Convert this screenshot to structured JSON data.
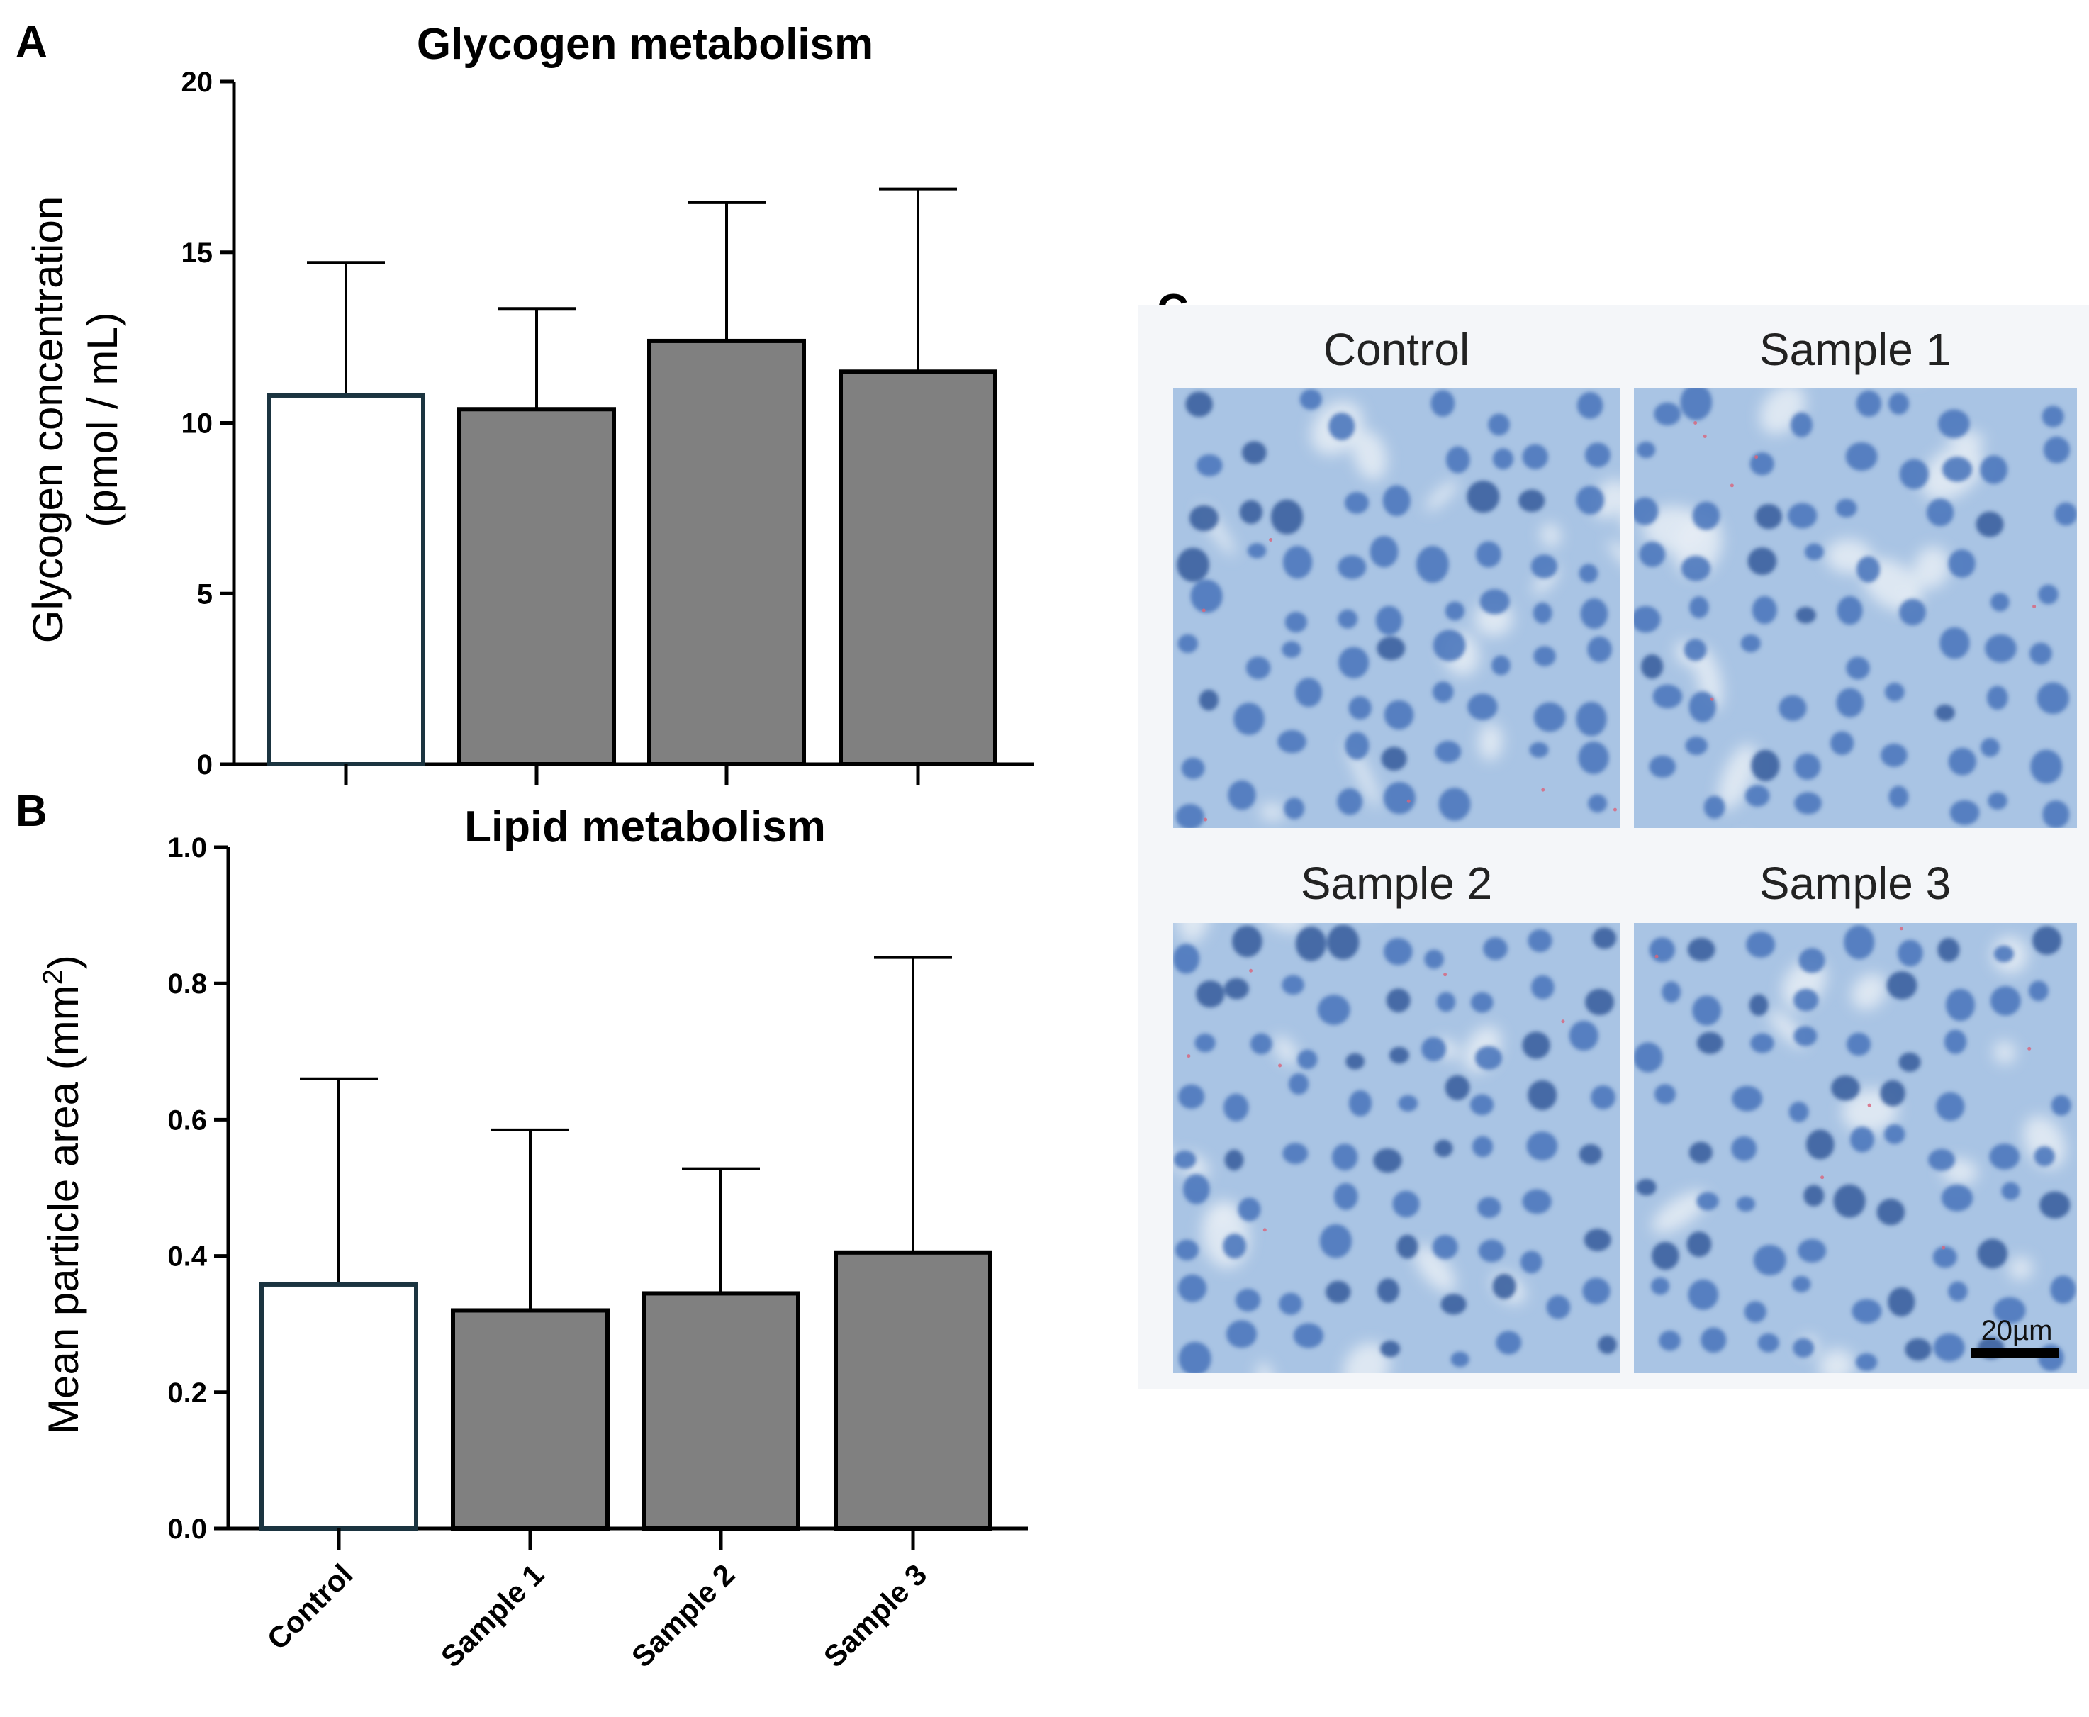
{
  "panels": {
    "A": "A",
    "B": "B",
    "C": "C"
  },
  "chart_data": [
    {
      "type": "bar",
      "title": "Glycogen metabolism",
      "categories": [
        "Control",
        "Sample 1",
        "Sample 2",
        "Sample 3"
      ],
      "values": [
        10.8,
        10.4,
        12.4,
        11.5
      ],
      "error_upper": [
        14.7,
        13.35,
        16.45,
        16.85
      ],
      "ylabel_line1": "Glycogen concentration",
      "ylabel_line2": "(pmol / mL)",
      "ylim": [
        0,
        20
      ],
      "yticks": [
        "0",
        "5",
        "10",
        "15",
        "20"
      ],
      "show_xticklabels": false,
      "colors": {
        "control_fill": "#ffffff",
        "control_stroke": "#1b3440",
        "sample_fill": "#808080",
        "sample_stroke": "#000000"
      }
    },
    {
      "type": "bar",
      "title": "Lipid metabolism",
      "categories": [
        "Control",
        "Sample 1",
        "Sample 2",
        "Sample 3"
      ],
      "values": [
        0.358,
        0.32,
        0.345,
        0.405
      ],
      "error_upper": [
        0.66,
        0.585,
        0.528,
        0.838
      ],
      "ylabel": "Mean particle area (mm",
      "ylabel_sup": "2",
      "ylabel_end": ")",
      "ylim": [
        0,
        1.0
      ],
      "yticks": [
        "0.0",
        "0.2",
        "0.4",
        "0.6",
        "0.8",
        "1.0"
      ],
      "show_xticklabels": true,
      "colors": {
        "control_fill": "#ffffff",
        "control_stroke": "#1b3440",
        "sample_fill": "#808080",
        "sample_stroke": "#000000"
      }
    }
  ],
  "micrographs": {
    "labels": [
      "Control",
      "Sample 1",
      "Sample 2",
      "Sample 3"
    ],
    "scale_bar": "20µm",
    "colors": {
      "tissue": "#a9c4e4",
      "nucleus": "#4d78bc",
      "background": "#eef2f7"
    }
  }
}
